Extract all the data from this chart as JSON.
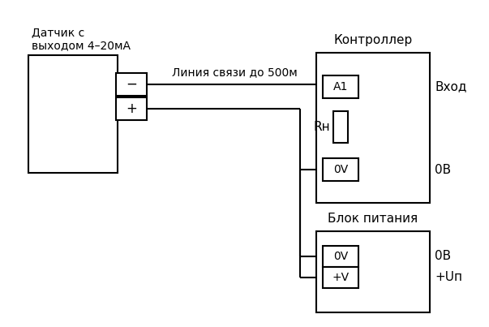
{
  "bg_color": "#ffffff",
  "line_color": "#000000",
  "sensor_label": "Датчик с\nвыходом 4–20мА",
  "controller_label": "Контроллер",
  "power_label": "Блок питания",
  "line_label": "Линия связи до 500м",
  "rn_label": "Rн",
  "a1_label": "A1",
  "vhod_label": "Вход",
  "ov_label1": "0V",
  "ob_label1": "0В",
  "ov_label2": "0V",
  "ob_label2": "0В",
  "plus_v_label": "+V",
  "plus_un_label": "+Uп",
  "minus_label": "−",
  "plus_label": "+"
}
